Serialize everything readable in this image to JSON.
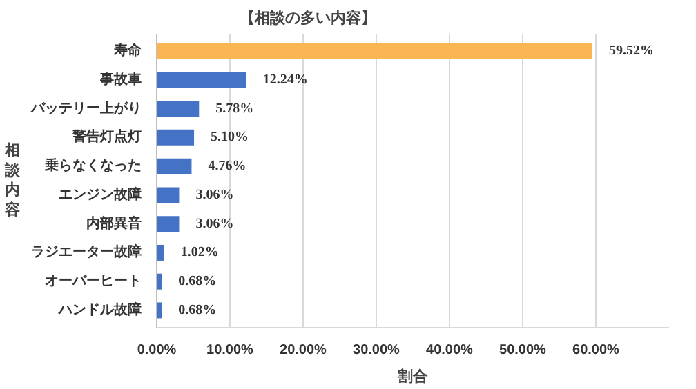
{
  "chart_data": {
    "type": "bar",
    "orientation": "horizontal",
    "title": "【相談の多い内容】",
    "xlabel": "割合",
    "ylabel": "相談内容",
    "categories": [
      "寿命",
      "事故車",
      "バッテリー上がり",
      "警告灯点灯",
      "乗らなくなった",
      "エンジン故障",
      "内部異音",
      "ラジエーター故障",
      "オーバーヒート",
      "ハンドル故障"
    ],
    "values": [
      59.52,
      12.24,
      5.78,
      5.1,
      4.76,
      3.06,
      3.06,
      1.02,
      0.68,
      0.68
    ],
    "colors": [
      "#fbb654",
      "#4472c4",
      "#4472c4",
      "#4472c4",
      "#4472c4",
      "#4472c4",
      "#4472c4",
      "#4472c4",
      "#4472c4",
      "#4472c4"
    ],
    "value_labels": [
      "59.52%",
      "12.24%",
      "5.78%",
      "5.10%",
      "4.76%",
      "3.06%",
      "3.06%",
      "1.02%",
      "0.68%",
      "0.68%"
    ],
    "xlim": [
      0,
      70
    ],
    "xticks": [
      {
        "value": 0,
        "label": "0.00%"
      },
      {
        "value": 10,
        "label": "10.00%"
      },
      {
        "value": 20,
        "label": "20.00%"
      },
      {
        "value": 30,
        "label": "30.00%"
      },
      {
        "value": 40,
        "label": "40.00%"
      },
      {
        "value": 50,
        "label": "50.00%"
      },
      {
        "value": 60,
        "label": "60.00%"
      }
    ],
    "grid": "x"
  }
}
